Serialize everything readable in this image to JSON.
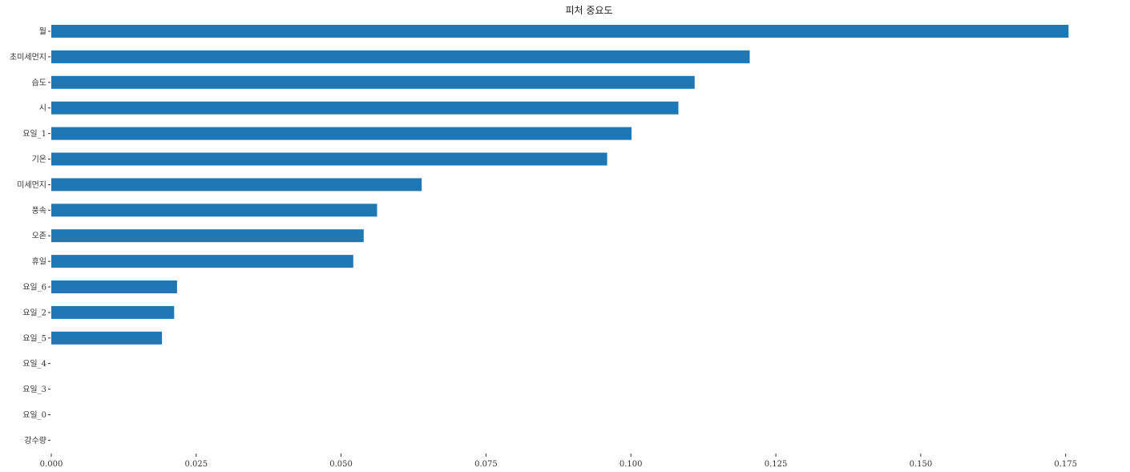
{
  "chart_data": {
    "type": "bar",
    "orientation": "horizontal",
    "title": "피처 중요도",
    "xlabel": "",
    "ylabel": "",
    "xlim": [
      0,
      0.185
    ],
    "x_ticks": [
      "0.000",
      "0.025",
      "0.050",
      "0.075",
      "0.100",
      "0.125",
      "0.150",
      "0.175"
    ],
    "x_tick_values": [
      0,
      0.025,
      0.05,
      0.075,
      0.1,
      0.125,
      0.15,
      0.175
    ],
    "categories": [
      "월",
      "초미세먼지",
      "습도",
      "시",
      "요일_1",
      "기온",
      "미세먼지",
      "풍속",
      "오존",
      "휴일",
      "요일_6",
      "요일_2",
      "요일_5",
      "요일_4",
      "요일_3",
      "요일_0",
      "강수량"
    ],
    "values": [
      0.1755,
      0.1205,
      0.111,
      0.1082,
      0.1001,
      0.0959,
      0.0639,
      0.0562,
      0.0539,
      0.0521,
      0.0217,
      0.0212,
      0.0191,
      0.0,
      0.0,
      0.0,
      0.0
    ],
    "bar_color": "#1f77b4",
    "grid": false,
    "legend": "none"
  }
}
